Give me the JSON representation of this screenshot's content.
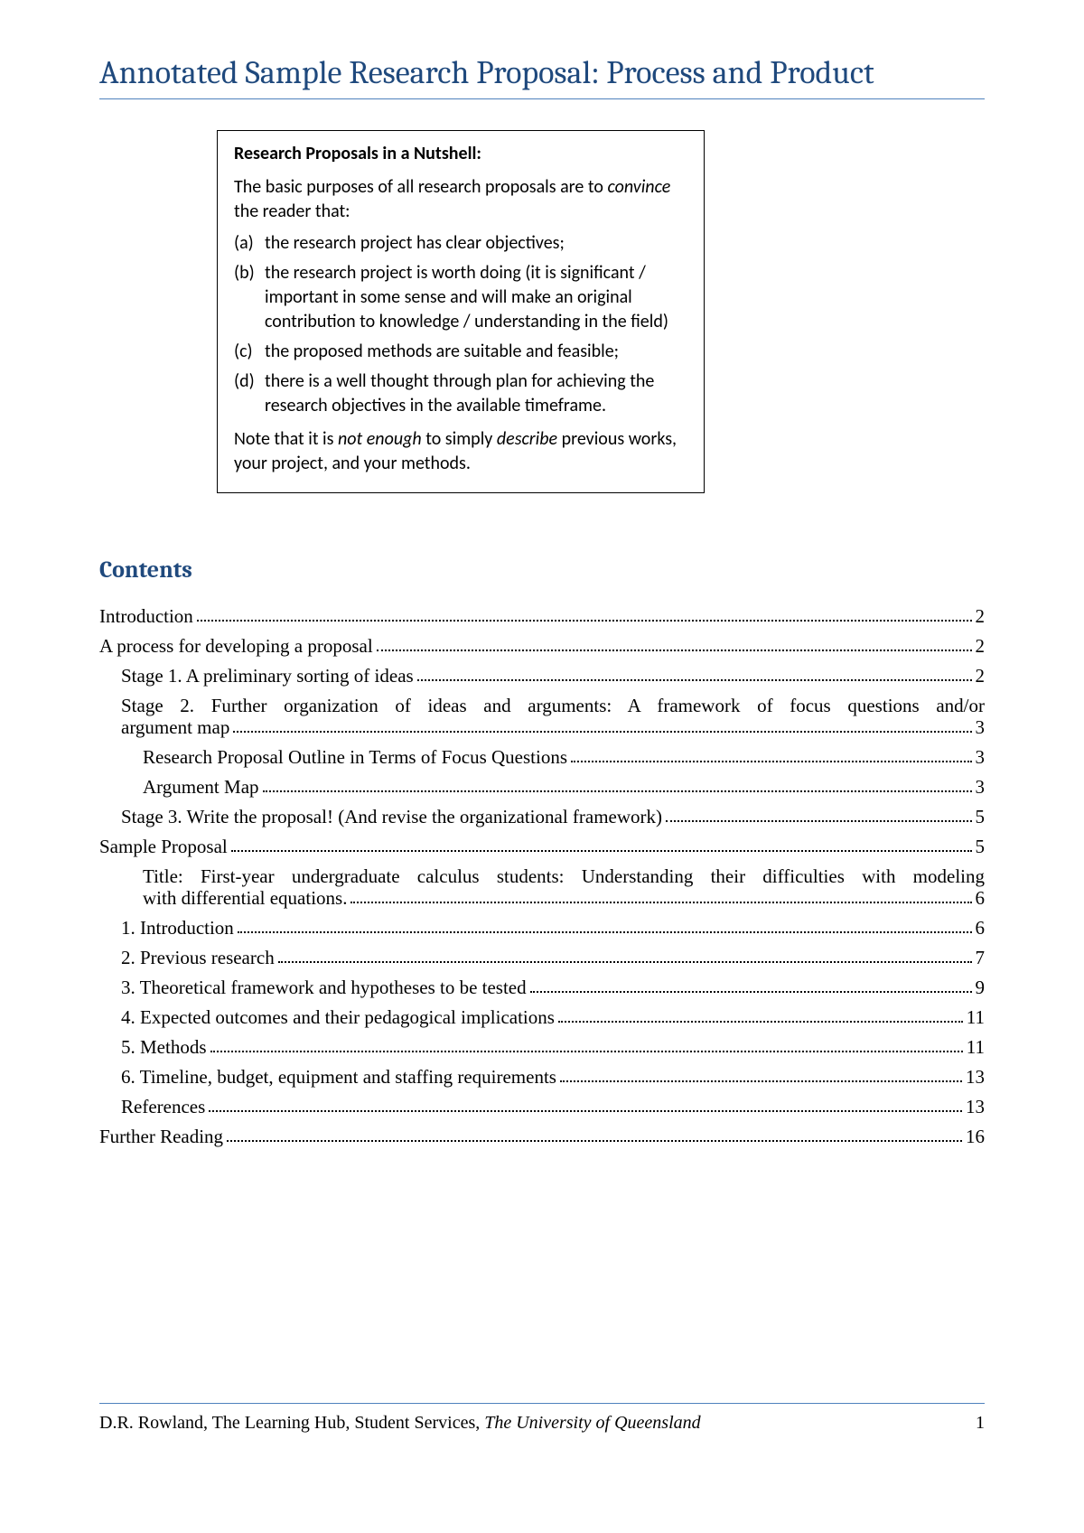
{
  "title": "Annotated Sample Research Proposal: Process and Product",
  "colors": {
    "heading": "#1f497d",
    "rule": "#4f81bd",
    "text": "#000000",
    "background": "#ffffff"
  },
  "nutshell": {
    "heading": "Research Proposals in a Nutshell:",
    "intro_pre": "The basic purposes of all research proposals are to ",
    "intro_emph": "convince",
    "intro_post": " the reader that:",
    "items": [
      {
        "label": "(a)",
        "text": "the research project has clear objectives;"
      },
      {
        "label": "(b)",
        "text": "the research project is worth doing (it is significant / important in some sense and will make an original contribution to knowledge / understanding in the field)"
      },
      {
        "label": "(c)",
        "text": "the proposed methods are suitable and feasible;"
      },
      {
        "label": "(d)",
        "text": "there is a well thought through plan for achieving the research objectives in the available timeframe."
      }
    ],
    "note_pre": "Note that it is ",
    "note_emph1": "not enough",
    "note_mid": " to simply ",
    "note_emph2": "describe",
    "note_post": " previous works, your project, and your methods."
  },
  "contents_heading": "Contents",
  "toc": [
    {
      "indent": 0,
      "wrap": false,
      "text": "Introduction",
      "page": "2"
    },
    {
      "indent": 0,
      "wrap": false,
      "text": "A process for developing a proposal",
      "page": "2"
    },
    {
      "indent": 1,
      "wrap": false,
      "text": "Stage 1. A preliminary sorting of ideas",
      "page": "2"
    },
    {
      "indent": 1,
      "wrap": true,
      "first": "Stage 2. Further organization of ideas and arguments: A framework of focus questions and/or",
      "second": "argument map",
      "page": "3"
    },
    {
      "indent": 2,
      "wrap": false,
      "text": "Research Proposal Outline in Terms of Focus Questions",
      "page": "3"
    },
    {
      "indent": 2,
      "wrap": false,
      "text": "Argument Map",
      "page": "3"
    },
    {
      "indent": 1,
      "wrap": false,
      "text": "Stage 3. Write the proposal! (And revise the organizational framework)",
      "page": "5"
    },
    {
      "indent": 0,
      "wrap": false,
      "text": "Sample Proposal",
      "page": "5"
    },
    {
      "indent": 2,
      "wrap": true,
      "first": "Title: First-year undergraduate calculus students: Understanding their difficulties with modeling",
      "second": "with differential equations.",
      "page": "6"
    },
    {
      "indent": 1,
      "wrap": false,
      "text": "1. Introduction",
      "page": "6"
    },
    {
      "indent": 1,
      "wrap": false,
      "text": "2. Previous research",
      "page": "7"
    },
    {
      "indent": 1,
      "wrap": false,
      "text": "3. Theoretical framework and hypotheses to be tested",
      "page": "9"
    },
    {
      "indent": 1,
      "wrap": false,
      "text": "4. Expected outcomes and their pedagogical implications",
      "page": "11"
    },
    {
      "indent": 1,
      "wrap": false,
      "text": "5. Methods",
      "page": "11"
    },
    {
      "indent": 1,
      "wrap": false,
      "text": "6. Timeline, budget, equipment and staffing requirements",
      "page": "13"
    },
    {
      "indent": 1,
      "wrap": false,
      "text": "References",
      "page": "13"
    },
    {
      "indent": 0,
      "wrap": false,
      "text": "Further Reading",
      "page": "16"
    }
  ],
  "footer": {
    "author": "D.R. Rowland, The Learning Hub, Student Services, ",
    "institution": "The University of Queensland",
    "page_number": "1"
  }
}
